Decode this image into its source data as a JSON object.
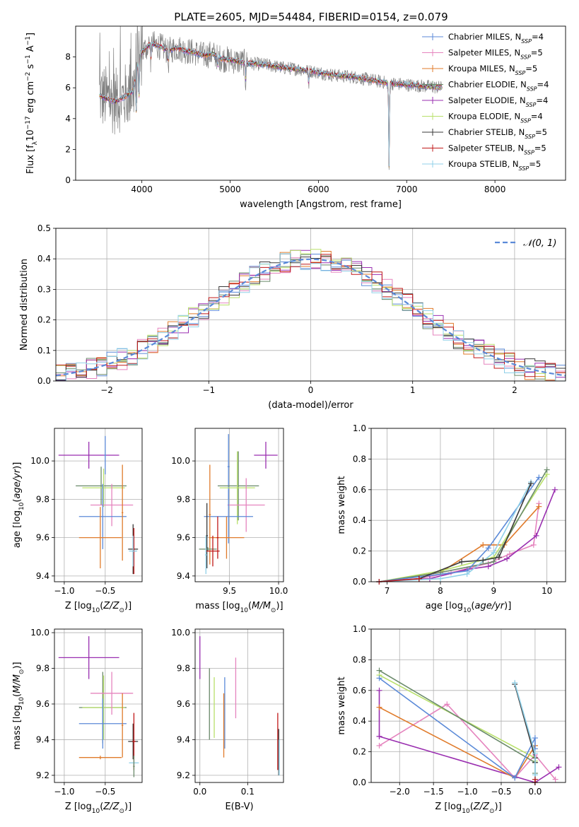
{
  "figure_title": "PLATE=2605, MJD=54484, FIBERID=0154, z=0.079",
  "series_colors": {
    "chabrier_miles": "#5b8ad8",
    "salpeter_miles": "#e584be",
    "kroupa_miles": "#e07b2b",
    "chabrier_elodie": "#6a8a6a",
    "salpeter_elodie": "#9a2fb0",
    "kroupa_elodie": "#b8e06a",
    "chabrier_stelib": "#3a3a3a",
    "salpeter_stelib": "#c01818",
    "kroupa_stelib": "#90d0e8"
  },
  "chart_data": [
    {
      "id": "spectrum",
      "type": "line",
      "title": "PLATE=2605, MJD=54484, FIBERID=0154, z=0.079",
      "xlabel": "wavelength [Angstrom, rest frame]",
      "ylabel": "Flux [f_λ 10^-17 erg cm^-2 s^-1 A^-1]",
      "xlim": [
        3250,
        8800
      ],
      "ylim": [
        0,
        10
      ],
      "xticks": [
        "4000",
        "5000",
        "6000",
        "7000",
        "8000"
      ],
      "yticks": [
        "0",
        "2",
        "4",
        "6",
        "8"
      ],
      "grid": false,
      "legend_position": "top-right",
      "legend": [
        {
          "text": "Chabrier MILES, N",
          "sub": "SSP",
          "tail": "=4",
          "color": "#5b8ad8"
        },
        {
          "text": "Salpeter MILES, N",
          "sub": "SSP",
          "tail": "=5",
          "color": "#e584be"
        },
        {
          "text": "Kroupa MILES, N",
          "sub": "SSP",
          "tail": "=5",
          "color": "#e07b2b"
        },
        {
          "text": "Chabrier ELODIE, N",
          "sub": "SSP",
          "tail": "=4",
          "color": "#6a8a6a"
        },
        {
          "text": "Salpeter ELODIE, N",
          "sub": "SSP",
          "tail": "=4",
          "color": "#9a2fb0"
        },
        {
          "text": "Kroupa ELODIE, N",
          "sub": "SSP",
          "tail": "=4",
          "color": "#b8e06a"
        },
        {
          "text": "Chabrier STELIB, N",
          "sub": "SSP",
          "tail": "=5",
          "color": "#3a3a3a"
        },
        {
          "text": "Salpeter STELIB, N",
          "sub": "SSP",
          "tail": "=5",
          "color": "#c01818"
        },
        {
          "text": "Kroupa STELIB, N",
          "sub": "SSP",
          "tail": "=5",
          "color": "#90d0e8"
        }
      ],
      "data_color": "#808080",
      "continuum": {
        "x": [
          3520,
          3600,
          3700,
          3800,
          3900,
          3950,
          4000,
          4100,
          4200,
          4300,
          4400,
          4500,
          4600,
          4700,
          4800,
          4900,
          5000,
          5200,
          5400,
          5600,
          5800,
          6000,
          6200,
          6400,
          6600,
          6800,
          7000,
          7200,
          7400
        ],
        "y": [
          5.5,
          5.3,
          5.1,
          5.4,
          5.8,
          7.4,
          8.3,
          8.9,
          8.7,
          8.4,
          8.6,
          8.4,
          8.3,
          8.1,
          8.2,
          7.9,
          7.8,
          7.6,
          7.5,
          7.3,
          7.2,
          7.0,
          6.8,
          6.7,
          6.5,
          6.3,
          6.2,
          6.1,
          6.0
        ]
      },
      "absorption_dips": [
        {
          "x": 3934,
          "depth": 3.0
        },
        {
          "x": 3968,
          "depth": 2.5
        },
        {
          "x": 4102,
          "depth": 1.2
        },
        {
          "x": 4300,
          "depth": 1.0
        },
        {
          "x": 4861,
          "depth": 0.8
        },
        {
          "x": 5175,
          "depth": 1.2
        },
        {
          "x": 5890,
          "depth": 0.9
        },
        {
          "x": 6800,
          "depth": 6.0
        }
      ]
    },
    {
      "id": "residuals",
      "type": "histogram",
      "xlabel": "(data-model)/error",
      "ylabel": "Normed distribution",
      "xlim": [
        -2.5,
        2.5
      ],
      "ylim": [
        0,
        0.5
      ],
      "xticks": [
        "−2",
        "−1",
        "0",
        "1",
        "2"
      ],
      "yticks": [
        "0.0",
        "0.1",
        "0.2",
        "0.3",
        "0.4",
        "0.5"
      ],
      "grid": true,
      "legend_position": "top-right",
      "legend": [
        {
          "text": "𝒩(0, 1)",
          "color": "#5b8ad8",
          "dashed": true
        }
      ],
      "bin_width": 0.1,
      "histogram_lines": 9,
      "gaussian": {
        "mean": 0,
        "sigma": 1
      }
    },
    {
      "id": "age_vs_Z",
      "type": "errorbar",
      "xlabel": "Z [log10(Z/Z⊙)]",
      "ylabel": "age [log10(age/yr)]",
      "xlim": [
        -1.12,
        -0.05
      ],
      "ylim": [
        9.37,
        10.17
      ],
      "xticks": [
        "−1.0",
        "−0.5"
      ],
      "xtick_values": [
        -1.0,
        -0.5
      ],
      "yticks": [
        "9.4",
        "9.6",
        "9.8",
        "10.0"
      ],
      "ytick_values": [
        9.4,
        9.6,
        9.8,
        10.0
      ],
      "grid": true,
      "points": [
        {
          "x": -0.7,
          "xerr": 0.37,
          "y": 10.03,
          "yerr": 0.07,
          "color": "#9a2fb0"
        },
        {
          "x": -0.5,
          "xerr": 0.01,
          "y": 10.03,
          "yerr": 0.1,
          "color": "#5b8ad8"
        },
        {
          "x": -0.55,
          "xerr": 0.31,
          "y": 9.87,
          "yerr": 0.1,
          "color": "#6a8a6a"
        },
        {
          "x": -0.52,
          "xerr": 0.26,
          "y": 9.86,
          "yerr": 0.1,
          "color": "#b8e06a"
        },
        {
          "x": -0.42,
          "xerr": 0.26,
          "y": 9.77,
          "yerr": 0.11,
          "color": "#e584be"
        },
        {
          "x": -0.53,
          "xerr": 0.29,
          "y": 9.71,
          "yerr": 0.17,
          "color": "#5b8ad8"
        },
        {
          "x": -0.56,
          "xerr": 0.26,
          "y": 9.6,
          "yerr": 0.16,
          "color": "#e07b2b"
        },
        {
          "x": -0.29,
          "xerr": 0.01,
          "y": 9.73,
          "yerr": 0.25,
          "color": "#e07b2b"
        },
        {
          "x": -0.16,
          "xerr": 0.06,
          "y": 9.54,
          "yerr": 0.13,
          "color": "#3a3a3a"
        },
        {
          "x": -0.15,
          "xerr": 0.02,
          "y": 9.53,
          "yerr": 0.12,
          "color": "#c01818"
        },
        {
          "x": -0.16,
          "xerr": 0.05,
          "y": 9.53,
          "yerr": 0.08,
          "color": "#90d0e8"
        }
      ]
    },
    {
      "id": "age_vs_mass",
      "type": "errorbar",
      "xlabel": "mass [log10(M/M⊙)]",
      "ylabel": "",
      "xlim": [
        9.15,
        10.05
      ],
      "ylim": [
        9.37,
        10.17
      ],
      "xticks": [
        "9.5",
        "10.0"
      ],
      "xtick_values": [
        9.5,
        10.0
      ],
      "yticks": [
        "9.4",
        "9.6",
        "9.8",
        "10.0"
      ],
      "ytick_values": [
        9.4,
        9.6,
        9.8,
        10.0
      ],
      "grid": true,
      "points": [
        {
          "x": 9.87,
          "xerr": 0.12,
          "y": 10.03,
          "yerr": 0.07,
          "color": "#9a2fb0"
        },
        {
          "x": 9.49,
          "xerr": 0.01,
          "y": 9.97,
          "yerr": 0.17,
          "color": "#5b8ad8"
        },
        {
          "x": 9.59,
          "xerr": 0.21,
          "y": 9.87,
          "yerr": 0.18,
          "color": "#6a8a6a"
        },
        {
          "x": 9.58,
          "xerr": 0.18,
          "y": 9.86,
          "yerr": 0.19,
          "color": "#b8e06a"
        },
        {
          "x": 9.67,
          "xerr": 0.19,
          "y": 9.77,
          "yerr": 0.14,
          "color": "#e584be"
        },
        {
          "x": 9.49,
          "xerr": 0.25,
          "y": 9.71,
          "yerr": 0.14,
          "color": "#5b8ad8"
        },
        {
          "x": 9.3,
          "xerr": 0.01,
          "y": 9.72,
          "yerr": 0.26,
          "color": "#e07b2b"
        },
        {
          "x": 9.47,
          "xerr": 0.18,
          "y": 9.6,
          "yerr": 0.11,
          "color": "#e07b2b"
        },
        {
          "x": 9.27,
          "xerr": 0.01,
          "y": 9.61,
          "yerr": 0.17,
          "color": "#3a3a3a"
        },
        {
          "x": 9.38,
          "xerr": 0.01,
          "y": 9.6,
          "yerr": 0.11,
          "color": "#c01818"
        },
        {
          "x": 9.28,
          "xerr": 0.09,
          "y": 9.54,
          "yerr": 0.01,
          "color": "#6a8a6a"
        },
        {
          "x": 9.33,
          "xerr": 0.07,
          "y": 9.53,
          "yerr": 0.08,
          "color": "#c01818"
        },
        {
          "x": 9.26,
          "xerr": 0.01,
          "y": 9.51,
          "yerr": 0.1,
          "color": "#90d0e8"
        }
      ]
    },
    {
      "id": "weight_vs_age",
      "type": "line",
      "xlabel": "age [log10(age/yr)]",
      "ylabel": "mass weight",
      "xlim": [
        6.7,
        10.35
      ],
      "ylim": [
        0,
        1.0
      ],
      "xticks": [
        "7",
        "8",
        "9",
        "10"
      ],
      "xtick_values": [
        7,
        8,
        9,
        10
      ],
      "yticks": [
        "0.0",
        "0.2",
        "0.4",
        "0.6",
        "0.8",
        "1.0"
      ],
      "ytick_values": [
        0,
        0.2,
        0.4,
        0.6,
        0.8,
        1.0
      ],
      "grid": true,
      "series": [
        {
          "color": "#e584be",
          "x": [
            6.85,
            7.6,
            8.2,
            8.9,
            9.3,
            9.75,
            9.85
          ],
          "y": [
            0.0,
            0.02,
            0.06,
            0.12,
            0.18,
            0.24,
            0.51
          ]
        },
        {
          "color": "#9a2fb0",
          "x": [
            6.85,
            7.8,
            8.5,
            8.9,
            9.25,
            9.8,
            10.15
          ],
          "y": [
            0.0,
            0.02,
            0.08,
            0.1,
            0.15,
            0.3,
            0.6
          ]
        },
        {
          "color": "#e07b2b",
          "x": [
            6.85,
            8.0,
            8.8,
            9.2,
            9.85
          ],
          "y": [
            0.0,
            0.06,
            0.24,
            0.24,
            0.49
          ]
        },
        {
          "color": "#b8e06a",
          "x": [
            6.85,
            8.0,
            9.0,
            10.0
          ],
          "y": [
            0.0,
            0.07,
            0.16,
            0.7
          ]
        },
        {
          "color": "#6a8a6a",
          "x": [
            6.85,
            8.0,
            9.0,
            10.0
          ],
          "y": [
            0.0,
            0.06,
            0.13,
            0.73
          ]
        },
        {
          "color": "#5b8ad8",
          "x": [
            6.85,
            8.5,
            8.9,
            9.85
          ],
          "y": [
            0.0,
            0.07,
            0.22,
            0.68
          ]
        },
        {
          "color": "#90d0e8",
          "x": [
            6.85,
            8.0,
            8.5,
            9.0,
            9.7
          ],
          "y": [
            0.0,
            0.02,
            0.05,
            0.19,
            0.65
          ]
        },
        {
          "color": "#3a3a3a",
          "x": [
            7.6,
            8.4,
            8.8,
            9.1,
            9.7
          ],
          "y": [
            0.02,
            0.13,
            0.14,
            0.16,
            0.64
          ]
        },
        {
          "color": "#c01818",
          "x": [
            6.85,
            7.6
          ],
          "y": [
            0.0,
            0.02
          ]
        }
      ]
    },
    {
      "id": "mass_vs_Z",
      "type": "errorbar",
      "xlabel": "Z [log10(Z/Z⊙)]",
      "ylabel": "mass [log10(M/M⊙)]",
      "xlim": [
        -1.12,
        -0.05
      ],
      "ylim": [
        9.16,
        10.02
      ],
      "xticks": [
        "−1.0",
        "−0.5"
      ],
      "xtick_values": [
        -1.0,
        -0.5
      ],
      "yticks": [
        "9.2",
        "9.4",
        "9.6",
        "9.8",
        "10.0"
      ],
      "ytick_values": [
        9.2,
        9.4,
        9.6,
        9.8,
        10.0
      ],
      "grid": true,
      "points": [
        {
          "x": -0.7,
          "xerr": 0.37,
          "y": 9.86,
          "yerr": 0.12,
          "color": "#9a2fb0"
        },
        {
          "x": -0.53,
          "xerr": 0.29,
          "y": 9.58,
          "yerr": 0.2,
          "color": "#6a8a6a"
        },
        {
          "x": -0.52,
          "xerr": 0.26,
          "y": 9.58,
          "yerr": 0.18,
          "color": "#b8e06a"
        },
        {
          "x": -0.42,
          "xerr": 0.26,
          "y": 9.66,
          "yerr": 0.12,
          "color": "#e584be"
        },
        {
          "x": -0.53,
          "xerr": 0.29,
          "y": 9.49,
          "yerr": 0.14,
          "color": "#5b8ad8"
        },
        {
          "x": -0.56,
          "xerr": 0.26,
          "y": 9.3,
          "yerr": 0.01,
          "color": "#e07b2b"
        },
        {
          "x": -0.29,
          "xerr": 0.01,
          "y": 9.48,
          "yerr": 0.18,
          "color": "#e07b2b"
        },
        {
          "x": -0.16,
          "xerr": 0.06,
          "y": 9.39,
          "yerr": 0.1,
          "color": "#3a3a3a"
        },
        {
          "x": -0.15,
          "xerr": 0.02,
          "y": 9.39,
          "yerr": 0.16,
          "color": "#c01818"
        },
        {
          "x": -0.15,
          "xerr": 0.06,
          "y": 9.27,
          "yerr": 0.01,
          "color": "#90d0e8"
        },
        {
          "x": -0.15,
          "xerr": 0.01,
          "y": 9.25,
          "yerr": 0.06,
          "color": "#6a8a6a"
        }
      ]
    },
    {
      "id": "mass_vs_EBV",
      "type": "errorbar",
      "xlabel": "E(B-V)",
      "ylabel": "",
      "xlim": [
        -0.01,
        0.175
      ],
      "ylim": [
        9.16,
        10.02
      ],
      "xticks": [
        "0.0",
        "0.1"
      ],
      "xtick_values": [
        0.0,
        0.1
      ],
      "yticks": [
        "9.2",
        "9.4",
        "9.6",
        "9.8",
        "10.0"
      ],
      "ytick_values": [
        9.2,
        9.4,
        9.6,
        9.8,
        10.0
      ],
      "grid": true,
      "points": [
        {
          "x": 0.0,
          "xerr": 0.0,
          "y": 9.86,
          "yerr": 0.12,
          "color": "#9a2fb0"
        },
        {
          "x": 0.02,
          "xerr": 0.0,
          "y": 9.6,
          "yerr": 0.2,
          "color": "#6a8a6a"
        },
        {
          "x": 0.03,
          "xerr": 0.0,
          "y": 9.58,
          "yerr": 0.17,
          "color": "#b8e06a"
        },
        {
          "x": 0.075,
          "xerr": 0.0,
          "y": 9.69,
          "yerr": 0.17,
          "color": "#e584be"
        },
        {
          "x": 0.052,
          "xerr": 0.0,
          "y": 9.55,
          "yerr": 0.2,
          "color": "#5b8ad8"
        },
        {
          "x": 0.05,
          "xerr": 0.0,
          "y": 9.48,
          "yerr": 0.18,
          "color": "#e07b2b"
        },
        {
          "x": 0.163,
          "xerr": 0.0,
          "y": 9.39,
          "yerr": 0.16,
          "color": "#c01818"
        },
        {
          "x": 0.165,
          "xerr": 0.0,
          "y": 9.33,
          "yerr": 0.13,
          "color": "#3a3a3a"
        },
        {
          "x": 0.166,
          "xerr": 0.0,
          "y": 9.3,
          "yerr": 0.1,
          "color": "#90d0e8"
        }
      ]
    },
    {
      "id": "weight_vs_Z",
      "type": "line",
      "xlabel": "Z [log10(Z/Z⊙)]",
      "ylabel": "mass weight",
      "xlim": [
        -2.42,
        0.45
      ],
      "ylim": [
        0,
        1.0
      ],
      "xticks": [
        "−2.0",
        "−1.5",
        "−1.0",
        "−0.5",
        "0.0"
      ],
      "xtick_values": [
        -2.0,
        -1.5,
        -1.0,
        -0.5,
        0.0
      ],
      "yticks": [
        "0.0",
        "0.2",
        "0.4",
        "0.6",
        "0.8",
        "1.0"
      ],
      "ytick_values": [
        0,
        0.2,
        0.4,
        0.6,
        0.8,
        1.0
      ],
      "grid": true,
      "series": [
        {
          "color": "#e584be",
          "x": [
            -2.3,
            -1.3,
            -0.3,
            0.0,
            0.3
          ],
          "y": [
            0.24,
            0.51,
            0.03,
            0.18,
            0.02
          ]
        },
        {
          "color": "#9a2fb0",
          "x": [
            -2.3,
            -2.3,
            -2.3,
            0.0,
            0.35
          ],
          "y": [
            0.6,
            0.3,
            0.3,
            0.0,
            0.1
          ]
        },
        {
          "color": "#e07b2b",
          "x": [
            -2.3,
            -0.3,
            0.0,
            0.0
          ],
          "y": [
            0.49,
            0.03,
            0.24,
            0.24
          ]
        },
        {
          "color": "#b8e06a",
          "x": [
            -2.3,
            0.0,
            0.0
          ],
          "y": [
            0.7,
            0.16,
            0.14
          ]
        },
        {
          "color": "#6a8a6a",
          "x": [
            -2.3,
            0.0,
            0.0,
            0.0
          ],
          "y": [
            0.73,
            0.13,
            0.06,
            0.0
          ]
        },
        {
          "color": "#5b8ad8",
          "x": [
            -2.3,
            -0.3,
            0.0,
            0.0
          ],
          "y": [
            0.68,
            0.03,
            0.29,
            0.22
          ]
        },
        {
          "color": "#3a3a3a",
          "x": [
            -0.3,
            0.0,
            0.0
          ],
          "y": [
            0.64,
            0.16,
            0.13
          ]
        },
        {
          "color": "#90d0e8",
          "x": [
            -0.3,
            0.0,
            0.0,
            0.0
          ],
          "y": [
            0.65,
            0.19,
            0.05,
            0.02
          ]
        },
        {
          "color": "#c01818",
          "x": [
            0.0,
            0.0
          ],
          "y": [
            0.02,
            0.0
          ]
        }
      ]
    }
  ]
}
